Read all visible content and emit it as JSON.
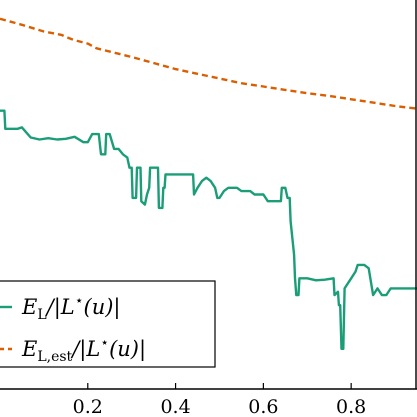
{
  "chart_data": {
    "type": "line",
    "xlim": [
      0.0,
      0.95
    ],
    "ylim": [
      0.0,
      0.58
    ],
    "x_ticks": [
      0.2,
      0.4,
      0.6,
      0.8
    ],
    "x_tick_labels": [
      "0.2",
      "0.4",
      "0.6",
      "0.8"
    ],
    "grid": false,
    "legend_position": "bottom-left",
    "series": [
      {
        "name": "E_L/|L*(u)|",
        "color": "#1b9e77",
        "dash": "solid",
        "points": [
          [
            0.0,
            0.415
          ],
          [
            0.01,
            0.415
          ],
          [
            0.012,
            0.388
          ],
          [
            0.04,
            0.388
          ],
          [
            0.05,
            0.39
          ],
          [
            0.07,
            0.375
          ],
          [
            0.09,
            0.372
          ],
          [
            0.11,
            0.374
          ],
          [
            0.13,
            0.372
          ],
          [
            0.15,
            0.373
          ],
          [
            0.17,
            0.376
          ],
          [
            0.19,
            0.368
          ],
          [
            0.2,
            0.368
          ],
          [
            0.21,
            0.38
          ],
          [
            0.225,
            0.38
          ],
          [
            0.23,
            0.35
          ],
          [
            0.24,
            0.35
          ],
          [
            0.242,
            0.38
          ],
          [
            0.25,
            0.38
          ],
          [
            0.26,
            0.358
          ],
          [
            0.27,
            0.358
          ],
          [
            0.28,
            0.35
          ],
          [
            0.29,
            0.345
          ],
          [
            0.295,
            0.33
          ],
          [
            0.3,
            0.33
          ],
          [
            0.302,
            0.285
          ],
          [
            0.31,
            0.285
          ],
          [
            0.312,
            0.33
          ],
          [
            0.32,
            0.33
          ],
          [
            0.322,
            0.28
          ],
          [
            0.33,
            0.275
          ],
          [
            0.335,
            0.29
          ],
          [
            0.34,
            0.3
          ],
          [
            0.342,
            0.33
          ],
          [
            0.36,
            0.33
          ],
          [
            0.362,
            0.27
          ],
          [
            0.37,
            0.27
          ],
          [
            0.372,
            0.3
          ],
          [
            0.375,
            0.3
          ],
          [
            0.377,
            0.32
          ],
          [
            0.44,
            0.32
          ],
          [
            0.442,
            0.29
          ],
          [
            0.45,
            0.3
          ],
          [
            0.46,
            0.31
          ],
          [
            0.47,
            0.315
          ],
          [
            0.48,
            0.31
          ],
          [
            0.49,
            0.3
          ],
          [
            0.495,
            0.285
          ],
          [
            0.5,
            0.285
          ],
          [
            0.51,
            0.295
          ],
          [
            0.52,
            0.3
          ],
          [
            0.54,
            0.3
          ],
          [
            0.55,
            0.295
          ],
          [
            0.57,
            0.295
          ],
          [
            0.58,
            0.29
          ],
          [
            0.6,
            0.29
          ],
          [
            0.61,
            0.28
          ],
          [
            0.64,
            0.28
          ],
          [
            0.642,
            0.3
          ],
          [
            0.65,
            0.3
          ],
          [
            0.655,
            0.285
          ],
          [
            0.66,
            0.285
          ],
          [
            0.662,
            0.25
          ],
          [
            0.67,
            0.2
          ],
          [
            0.672,
            0.165
          ],
          [
            0.675,
            0.14
          ],
          [
            0.68,
            0.14
          ],
          [
            0.682,
            0.165
          ],
          [
            0.7,
            0.165
          ],
          [
            0.72,
            0.162
          ],
          [
            0.74,
            0.163
          ],
          [
            0.76,
            0.165
          ],
          [
            0.762,
            0.14
          ],
          [
            0.77,
            0.145
          ],
          [
            0.772,
            0.125
          ],
          [
            0.775,
            0.125
          ],
          [
            0.778,
            0.06
          ],
          [
            0.782,
            0.06
          ],
          [
            0.785,
            0.15
          ],
          [
            0.79,
            0.155
          ],
          [
            0.8,
            0.165
          ],
          [
            0.81,
            0.175
          ],
          [
            0.815,
            0.185
          ],
          [
            0.83,
            0.185
          ],
          [
            0.84,
            0.18
          ],
          [
            0.845,
            0.16
          ],
          [
            0.85,
            0.14
          ],
          [
            0.86,
            0.15
          ],
          [
            0.87,
            0.14
          ],
          [
            0.88,
            0.14
          ],
          [
            0.89,
            0.15
          ],
          [
            0.9,
            0.15
          ],
          [
            0.92,
            0.15
          ],
          [
            0.95,
            0.15
          ]
        ]
      },
      {
        "name": "E_L,est/|L*(u)|",
        "color": "#d95f02",
        "dash": "dashed",
        "points": [
          [
            0.0,
            0.552
          ],
          [
            0.05,
            0.543
          ],
          [
            0.1,
            0.533
          ],
          [
            0.14,
            0.528
          ],
          [
            0.15,
            0.525
          ],
          [
            0.17,
            0.52
          ],
          [
            0.2,
            0.515
          ],
          [
            0.22,
            0.508
          ],
          [
            0.3,
            0.495
          ],
          [
            0.35,
            0.486
          ],
          [
            0.4,
            0.477
          ],
          [
            0.45,
            0.47
          ],
          [
            0.5,
            0.463
          ],
          [
            0.55,
            0.456
          ],
          [
            0.6,
            0.451
          ],
          [
            0.65,
            0.446
          ],
          [
            0.7,
            0.441
          ],
          [
            0.75,
            0.437
          ],
          [
            0.8,
            0.432
          ],
          [
            0.85,
            0.427
          ],
          [
            0.9,
            0.422
          ],
          [
            0.95,
            0.418
          ]
        ]
      }
    ],
    "legend": [
      {
        "base": "E",
        "sub": "L",
        "rest": "/|L",
        "sup": "⋆",
        "tail": "(u)|"
      },
      {
        "base": "E",
        "sub": "L,est",
        "rest": "/|L",
        "sup": "⋆",
        "tail": "(u)|"
      }
    ]
  }
}
